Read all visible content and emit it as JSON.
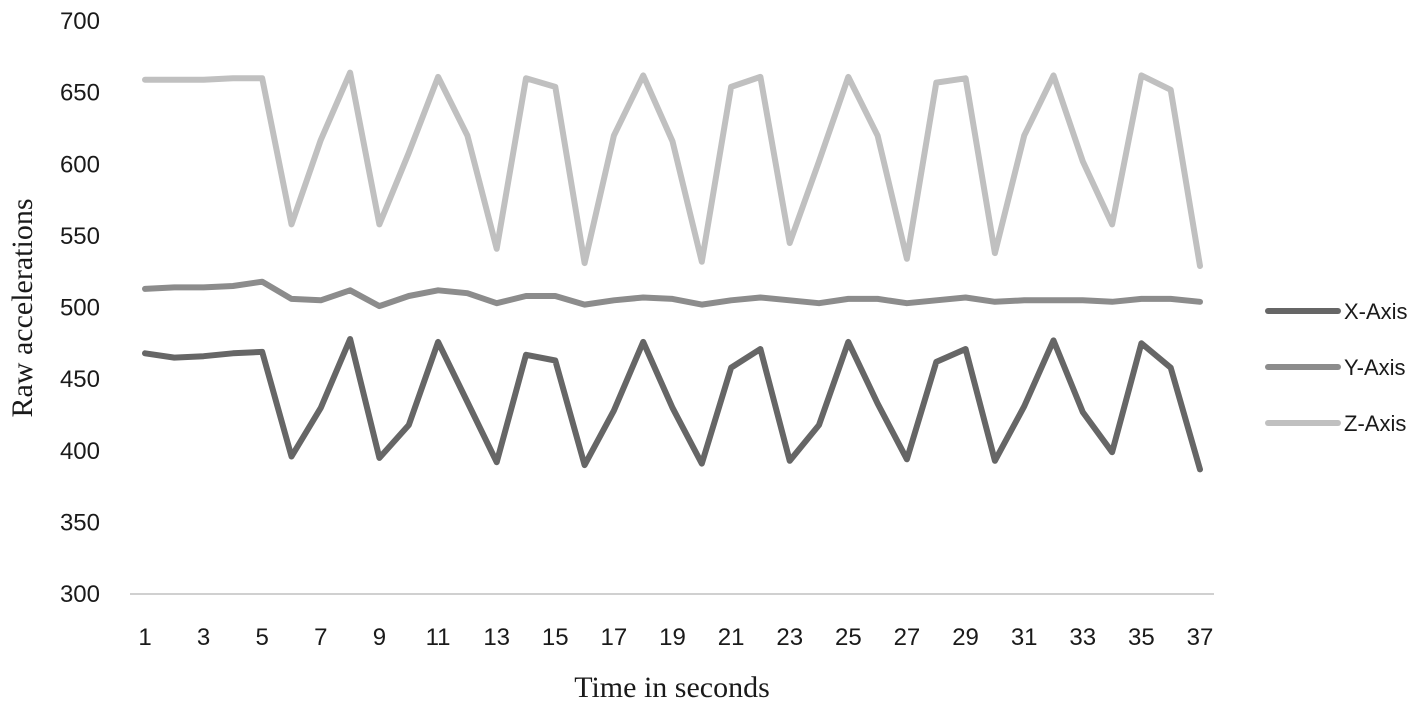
{
  "chart_data": {
    "type": "line",
    "title": "",
    "xlabel": "Time in seconds",
    "ylabel": "Raw accelerations",
    "ylim": [
      300,
      700
    ],
    "yticks": [
      300,
      350,
      400,
      450,
      500,
      550,
      600,
      650,
      700
    ],
    "x": [
      1,
      2,
      3,
      4,
      5,
      6,
      7,
      8,
      9,
      10,
      11,
      12,
      13,
      14,
      15,
      16,
      17,
      18,
      19,
      20,
      21,
      22,
      23,
      24,
      25,
      26,
      27,
      28,
      29,
      30,
      31,
      32,
      33,
      34,
      35,
      36,
      37
    ],
    "xtick_labels": [
      "1",
      "3",
      "5",
      "7",
      "9",
      "11",
      "13",
      "15",
      "17",
      "19",
      "21",
      "23",
      "25",
      "27",
      "29",
      "31",
      "33",
      "35",
      "37"
    ],
    "grid": false,
    "legend_position": "right",
    "series": [
      {
        "name": "X-Axis",
        "color": "#666666",
        "values": [
          468,
          465,
          466,
          468,
          469,
          396,
          430,
          478,
          395,
          418,
          476,
          434,
          392,
          467,
          463,
          390,
          428,
          476,
          430,
          391,
          458,
          471,
          393,
          418,
          476,
          433,
          394,
          462,
          471,
          393,
          431,
          477,
          427,
          399,
          475,
          458,
          387
        ]
      },
      {
        "name": "Y-Axis",
        "color": "#8c8c8c",
        "values": [
          513,
          514,
          514,
          515,
          518,
          506,
          505,
          512,
          501,
          508,
          512,
          510,
          503,
          508,
          508,
          502,
          505,
          507,
          506,
          502,
          505,
          507,
          505,
          503,
          506,
          506,
          503,
          505,
          507,
          504,
          505,
          505,
          505,
          504,
          506,
          506,
          504
        ]
      },
      {
        "name": "Z-Axis",
        "color": "#c0c0c0",
        "values": [
          659,
          659,
          659,
          660,
          660,
          558,
          617,
          664,
          558,
          608,
          661,
          620,
          541,
          660,
          654,
          531,
          620,
          662,
          616,
          532,
          654,
          661,
          545,
          602,
          661,
          620,
          534,
          657,
          660,
          538,
          620,
          662,
          602,
          558,
          662,
          652,
          529
        ]
      }
    ]
  }
}
